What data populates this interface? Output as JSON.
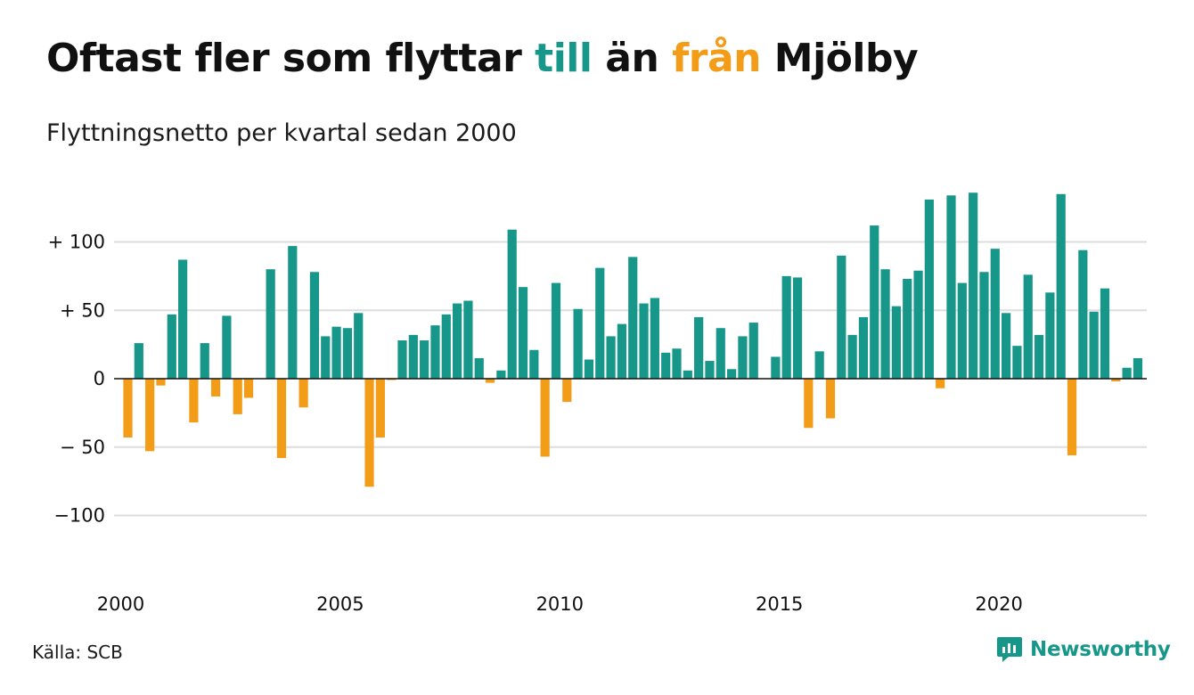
{
  "header": {
    "title_pre": "Oftast fler som flyttar ",
    "title_till": "till",
    "title_mid": " än ",
    "title_fran": "från",
    "title_post": " Mjölby",
    "subtitle": "Flyttningsnetto per kvartal sedan 2000"
  },
  "footer": {
    "source": "Källa: SCB",
    "brand": "Newsworthy",
    "brand_icon": "newsworthy-logo-icon"
  },
  "colors": {
    "positive": "#17978a",
    "negative": "#f39c18",
    "grid": "#dddddd",
    "axis": "#111111"
  },
  "chart_data": {
    "type": "bar",
    "title": "Oftast fler som flyttar till än från Mjölby",
    "subtitle": "Flyttningsnetto per kvartal sedan 2000",
    "x_start": "2000 Q1",
    "x_frequency": "quarter",
    "ylim": [
      -140,
      140
    ],
    "y_ticks": [
      100,
      50,
      0,
      -50,
      -100
    ],
    "y_tick_labels": [
      "+ 100",
      "+  50",
      "0",
      "− 50",
      "−100"
    ],
    "x_tick_labels": [
      "2000",
      "2005",
      "2010",
      "2015",
      "2020"
    ],
    "x_tick_quarter_index": [
      0,
      20,
      40,
      60,
      80
    ],
    "grid": true,
    "values": [
      -43,
      26,
      -53,
      -5,
      47,
      87,
      -32,
      26,
      -13,
      46,
      -26,
      -14,
      0,
      80,
      -58,
      97,
      -21,
      78,
      31,
      38,
      37,
      48,
      -79,
      -43,
      -1,
      28,
      32,
      28,
      39,
      47,
      55,
      57,
      15,
      -3,
      6,
      109,
      67,
      21,
      -57,
      70,
      -17,
      51,
      14,
      81,
      31,
      40,
      89,
      55,
      59,
      19,
      22,
      6,
      45,
      13,
      37,
      7,
      31,
      41,
      0,
      16,
      75,
      74,
      -36,
      20,
      -29,
      90,
      32,
      45,
      112,
      80,
      53,
      73,
      79,
      131,
      -7,
      134,
      70,
      136,
      78,
      95,
      48,
      24,
      76,
      32,
      63,
      135,
      -56,
      94,
      49,
      66,
      -2,
      8,
      15
    ]
  }
}
